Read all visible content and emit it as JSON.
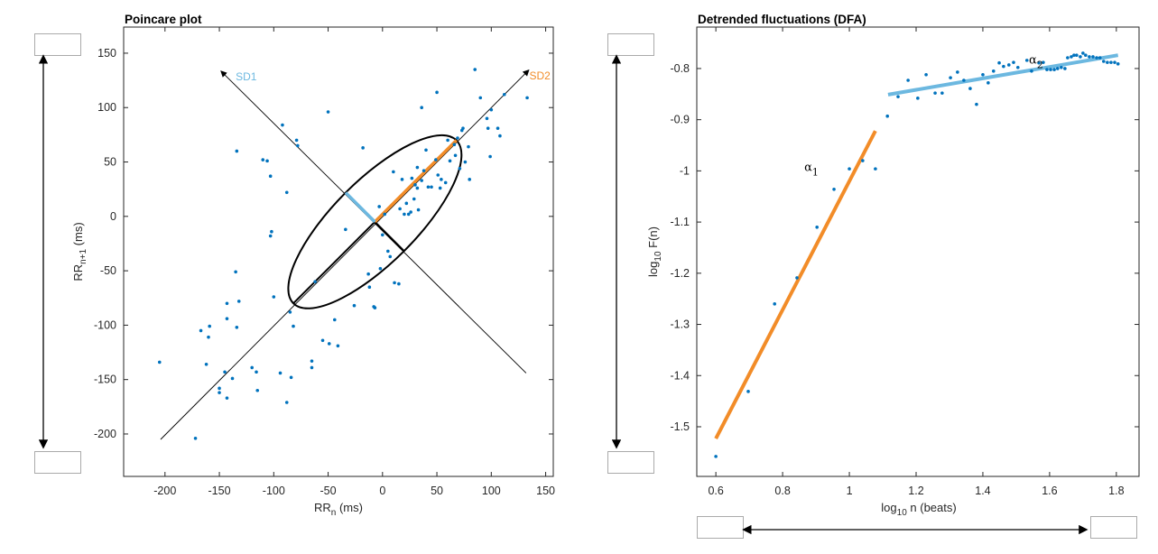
{
  "controls": {
    "left_top_box": "",
    "left_bottom_box": "",
    "right_top_box": "",
    "right_bottom_box": "",
    "bottom_left_box": "",
    "bottom_right_box": ""
  },
  "chart_data": [
    {
      "type": "scatter",
      "title": "Poincare plot",
      "xlabel": {
        "main": "RR",
        "sub": "n",
        "rest": " (ms)"
      },
      "ylabel": {
        "main": "RR",
        "sub": "n+1",
        "rest": " (ms)"
      },
      "xlim": [
        -238,
        157
      ],
      "ylim": [
        -239,
        174
      ],
      "xticks": [
        -200,
        -150,
        -100,
        -50,
        0,
        50,
        100,
        150
      ],
      "yticks": [
        -200,
        -150,
        -100,
        -50,
        0,
        50,
        100,
        150
      ],
      "grid": false,
      "point_color": "#0072BD",
      "points": [
        [
          -205,
          -134
        ],
        [
          -172,
          -204
        ],
        [
          -167,
          -105
        ],
        [
          -162,
          -136
        ],
        [
          -160,
          -111
        ],
        [
          -159,
          -101
        ],
        [
          -150,
          -162
        ],
        [
          -150,
          -158
        ],
        [
          -145,
          -143
        ],
        [
          -143,
          -80
        ],
        [
          -143,
          -94
        ],
        [
          -143,
          -167
        ],
        [
          -138,
          -149
        ],
        [
          -135,
          -51
        ],
        [
          -134,
          60
        ],
        [
          -134,
          -102
        ],
        [
          -132,
          -78
        ],
        [
          -120,
          -139
        ],
        [
          -116,
          -143
        ],
        [
          -115,
          -160
        ],
        [
          -110,
          52
        ],
        [
          -106,
          51
        ],
        [
          -103,
          -18
        ],
        [
          -103,
          37
        ],
        [
          -102,
          -14
        ],
        [
          -100,
          -74
        ],
        [
          -94,
          -144
        ],
        [
          -92,
          84
        ],
        [
          -88,
          -171
        ],
        [
          -88,
          22
        ],
        [
          -85,
          -88
        ],
        [
          -84,
          -148
        ],
        [
          -82,
          -101
        ],
        [
          -79,
          70
        ],
        [
          -78,
          65
        ],
        [
          -65,
          -133
        ],
        [
          -65,
          -139
        ],
        [
          -62,
          -60
        ],
        [
          -55,
          -114
        ],
        [
          -50,
          96
        ],
        [
          -49,
          -117
        ],
        [
          -44,
          -95
        ],
        [
          -41,
          -119
        ],
        [
          -34,
          -12
        ],
        [
          -26,
          -82
        ],
        [
          -18,
          63
        ],
        [
          -13,
          -53
        ],
        [
          -12,
          -65
        ],
        [
          -8,
          -83
        ],
        [
          -7,
          -84
        ],
        [
          -3,
          9
        ],
        [
          -2,
          -48
        ],
        [
          0,
          -17
        ],
        [
          2,
          2
        ],
        [
          5,
          -32
        ],
        [
          7,
          -37
        ],
        [
          10,
          41
        ],
        [
          11,
          -61
        ],
        [
          15,
          -62
        ],
        [
          16,
          7
        ],
        [
          18,
          34
        ],
        [
          20,
          2
        ],
        [
          22,
          12
        ],
        [
          24,
          2
        ],
        [
          26,
          4
        ],
        [
          27,
          35
        ],
        [
          29,
          16
        ],
        [
          30,
          29
        ],
        [
          32,
          26
        ],
        [
          32,
          45
        ],
        [
          33,
          6
        ],
        [
          36,
          100
        ],
        [
          36,
          33
        ],
        [
          38,
          42
        ],
        [
          40,
          61
        ],
        [
          42,
          27
        ],
        [
          45,
          27
        ],
        [
          49,
          52
        ],
        [
          50,
          114
        ],
        [
          51,
          38
        ],
        [
          53,
          26
        ],
        [
          54,
          34
        ],
        [
          58,
          31
        ],
        [
          60,
          70
        ],
        [
          62,
          51
        ],
        [
          66,
          66
        ],
        [
          67,
          56
        ],
        [
          69,
          72
        ],
        [
          71,
          44
        ],
        [
          73,
          79
        ],
        [
          74,
          81
        ],
        [
          76,
          50
        ],
        [
          79,
          64
        ],
        [
          80,
          34
        ],
        [
          85,
          135
        ],
        [
          90,
          109
        ],
        [
          96,
          90
        ],
        [
          97,
          81
        ],
        [
          99,
          55
        ],
        [
          100,
          98
        ],
        [
          106,
          81
        ],
        [
          108,
          74
        ],
        [
          112,
          112
        ],
        [
          133,
          109
        ]
      ],
      "ellipse": {
        "center": [
          -7,
          -5
        ],
        "sd1": 38,
        "sd2": 106,
        "color": "#000000"
      },
      "identity_axis": {
        "from": [
          -204,
          -205
        ],
        "to": [
          134,
          134
        ]
      },
      "perpendicular_axis": {
        "from": [
          132,
          -144
        ],
        "to": [
          -148,
          133
        ]
      },
      "annotations": [
        {
          "text": "SD1",
          "at": [
            -135,
            125
          ],
          "color": "#6CB8E0"
        },
        {
          "text": "SD2",
          "at": [
            135,
            126
          ],
          "color": "#F28C28"
        }
      ],
      "sd1_color": "#6CB8E0",
      "sd2_color": "#F28C28"
    },
    {
      "type": "scatter",
      "title": "Detrended fluctuations (DFA)",
      "xlabel": {
        "main": "log",
        "sub": "10",
        "rest": " n (beats)"
      },
      "ylabel": {
        "main": "log",
        "sub": "10",
        "rest": " F(n)"
      },
      "xlim": [
        0.459,
        1.868
      ],
      "ylim": [
        -1.597,
        -0.719
      ],
      "xticks": [
        0.6,
        0.8,
        1,
        1.2,
        1.4,
        1.6,
        1.8
      ],
      "yticks": [
        -1.5,
        -1.4,
        -1.3,
        -1.2,
        -1.1,
        -1,
        -0.9,
        -0.8
      ],
      "grid": false,
      "point_color": "#0072BD",
      "points": [
        [
          0.6,
          -1.558
        ],
        [
          0.697,
          -1.431
        ],
        [
          0.776,
          -1.26
        ],
        [
          0.843,
          -1.209
        ],
        [
          0.903,
          -1.11
        ],
        [
          0.954,
          -1.036
        ],
        [
          1.0,
          -0.996
        ],
        [
          1.04,
          -0.98
        ],
        [
          1.078,
          -0.996
        ],
        [
          1.114,
          -0.893
        ],
        [
          1.146,
          -0.855
        ],
        [
          1.176,
          -0.823
        ],
        [
          1.205,
          -0.858
        ],
        [
          1.23,
          -0.812
        ],
        [
          1.257,
          -0.848
        ],
        [
          1.278,
          -0.848
        ],
        [
          1.303,
          -0.818
        ],
        [
          1.324,
          -0.807
        ],
        [
          1.343,
          -0.823
        ],
        [
          1.362,
          -0.839
        ],
        [
          1.381,
          -0.87
        ],
        [
          1.4,
          -0.812
        ],
        [
          1.416,
          -0.828
        ],
        [
          1.432,
          -0.805
        ],
        [
          1.449,
          -0.789
        ],
        [
          1.462,
          -0.796
        ],
        [
          1.478,
          -0.793
        ],
        [
          1.492,
          -0.788
        ],
        [
          1.505,
          -0.798
        ],
        [
          1.532,
          -0.784
        ],
        [
          1.546,
          -0.805
        ],
        [
          1.568,
          -0.789
        ],
        [
          1.581,
          -0.788
        ],
        [
          1.592,
          -0.802
        ],
        [
          1.603,
          -0.802
        ],
        [
          1.614,
          -0.802
        ],
        [
          1.624,
          -0.8
        ],
        [
          1.635,
          -0.798
        ],
        [
          1.646,
          -0.8
        ],
        [
          1.654,
          -0.779
        ],
        [
          1.665,
          -0.777
        ],
        [
          1.673,
          -0.774
        ],
        [
          1.681,
          -0.774
        ],
        [
          1.692,
          -0.777
        ],
        [
          1.7,
          -0.77
        ],
        [
          1.708,
          -0.774
        ],
        [
          1.719,
          -0.777
        ],
        [
          1.73,
          -0.777
        ],
        [
          1.741,
          -0.779
        ],
        [
          1.751,
          -0.779
        ],
        [
          1.762,
          -0.786
        ],
        [
          1.773,
          -0.788
        ],
        [
          1.784,
          -0.788
        ],
        [
          1.795,
          -0.788
        ],
        [
          1.805,
          -0.791
        ]
      ],
      "fits": [
        {
          "name": "alpha1",
          "from": [
            0.6,
            -1.523
          ],
          "to": [
            1.078,
            -0.922
          ],
          "color": "#F28C28"
        },
        {
          "name": "alpha2",
          "from": [
            1.116,
            -0.851
          ],
          "to": [
            1.805,
            -0.774
          ],
          "color": "#6CB8E0"
        }
      ],
      "annotations": [
        {
          "main": "α",
          "sub": "1",
          "at": [
            0.865,
            -1.0
          ]
        },
        {
          "main": "α",
          "sub": "2",
          "at": [
            1.538,
            -0.79
          ]
        }
      ]
    }
  ]
}
